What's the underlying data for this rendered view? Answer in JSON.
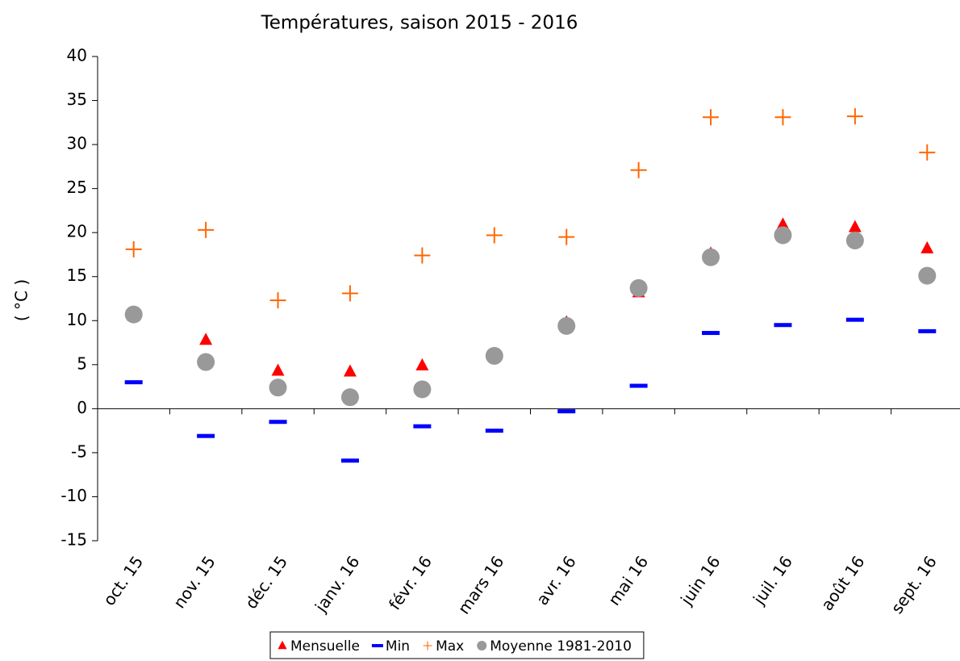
{
  "chart_data": {
    "type": "scatter",
    "title": "Températures, saison 2015 - 2016",
    "y_label": "( °C )",
    "categories": [
      "oct. 15",
      "nov. 15",
      "déc. 15",
      "janv. 16",
      "févr. 16",
      "mars 16",
      "avr. 16",
      "mai 16",
      "juin 16",
      "juil. 16",
      "août 16",
      "sept. 16"
    ],
    "series": [
      {
        "name": "Mensuelle",
        "color": "#ff0000",
        "marker": "triangle",
        "values": [
          10.5,
          7.8,
          4.3,
          4.2,
          4.9,
          6.2,
          9.8,
          13.2,
          17.6,
          20.9,
          20.6,
          18.2
        ]
      },
      {
        "name": "Min",
        "color": "#0000ff",
        "marker": "dash",
        "values": [
          3.0,
          -3.1,
          -1.5,
          -5.9,
          -2.0,
          -2.5,
          -0.3,
          2.6,
          8.6,
          9.5,
          10.1,
          8.8
        ]
      },
      {
        "name": "Max",
        "color": "#ff6600",
        "marker": "plus",
        "values": [
          18.1,
          20.3,
          12.3,
          13.1,
          17.4,
          19.7,
          19.5,
          27.1,
          33.1,
          33.1,
          33.2,
          29.1
        ]
      },
      {
        "name": "Moyenne 1981-2010",
        "color": "#999999",
        "marker": "circle",
        "values": [
          10.7,
          5.3,
          2.4,
          1.3,
          2.2,
          6.0,
          9.4,
          13.7,
          17.2,
          19.7,
          19.1,
          15.1
        ]
      }
    ],
    "ylim": [
      -15,
      40
    ],
    "yticks": [
      -15,
      -10,
      -5,
      0,
      5,
      10,
      15,
      20,
      25,
      30,
      35,
      40
    ],
    "grid": false
  }
}
